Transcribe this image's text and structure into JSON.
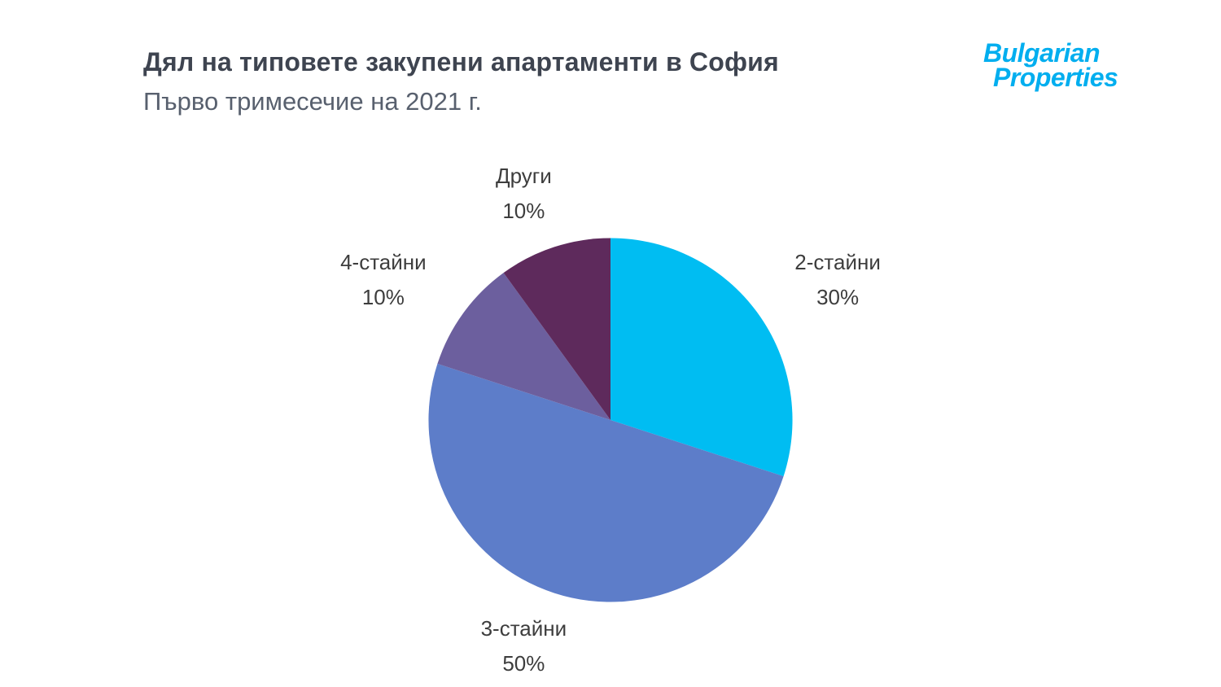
{
  "header": {
    "title": "Дял на типовете закупени апартаменти в София",
    "subtitle": "Първо тримесечие на 2021 г."
  },
  "logo": {
    "line1": "Bulgarian",
    "line2": "Properties",
    "brand_color": "#00aeef"
  },
  "chart_data": {
    "type": "pie",
    "title": "Дял на типовете закупени апартаменти в София",
    "subtitle": "Първо тримесечие на 2021 г.",
    "categories": [
      "2-стайни",
      "3-стайни",
      "4-стайни",
      "Други"
    ],
    "values": [
      30,
      50,
      10,
      10
    ],
    "unit": "%",
    "colors": [
      "#00bdf2",
      "#5d7dc9",
      "#6c5f9e",
      "#5e2a5c"
    ],
    "start_angle_deg": 0,
    "direction": "clockwise",
    "legend": "none",
    "label_style": "name and percent outside slices",
    "label_text_color": "#3d3d3d"
  }
}
